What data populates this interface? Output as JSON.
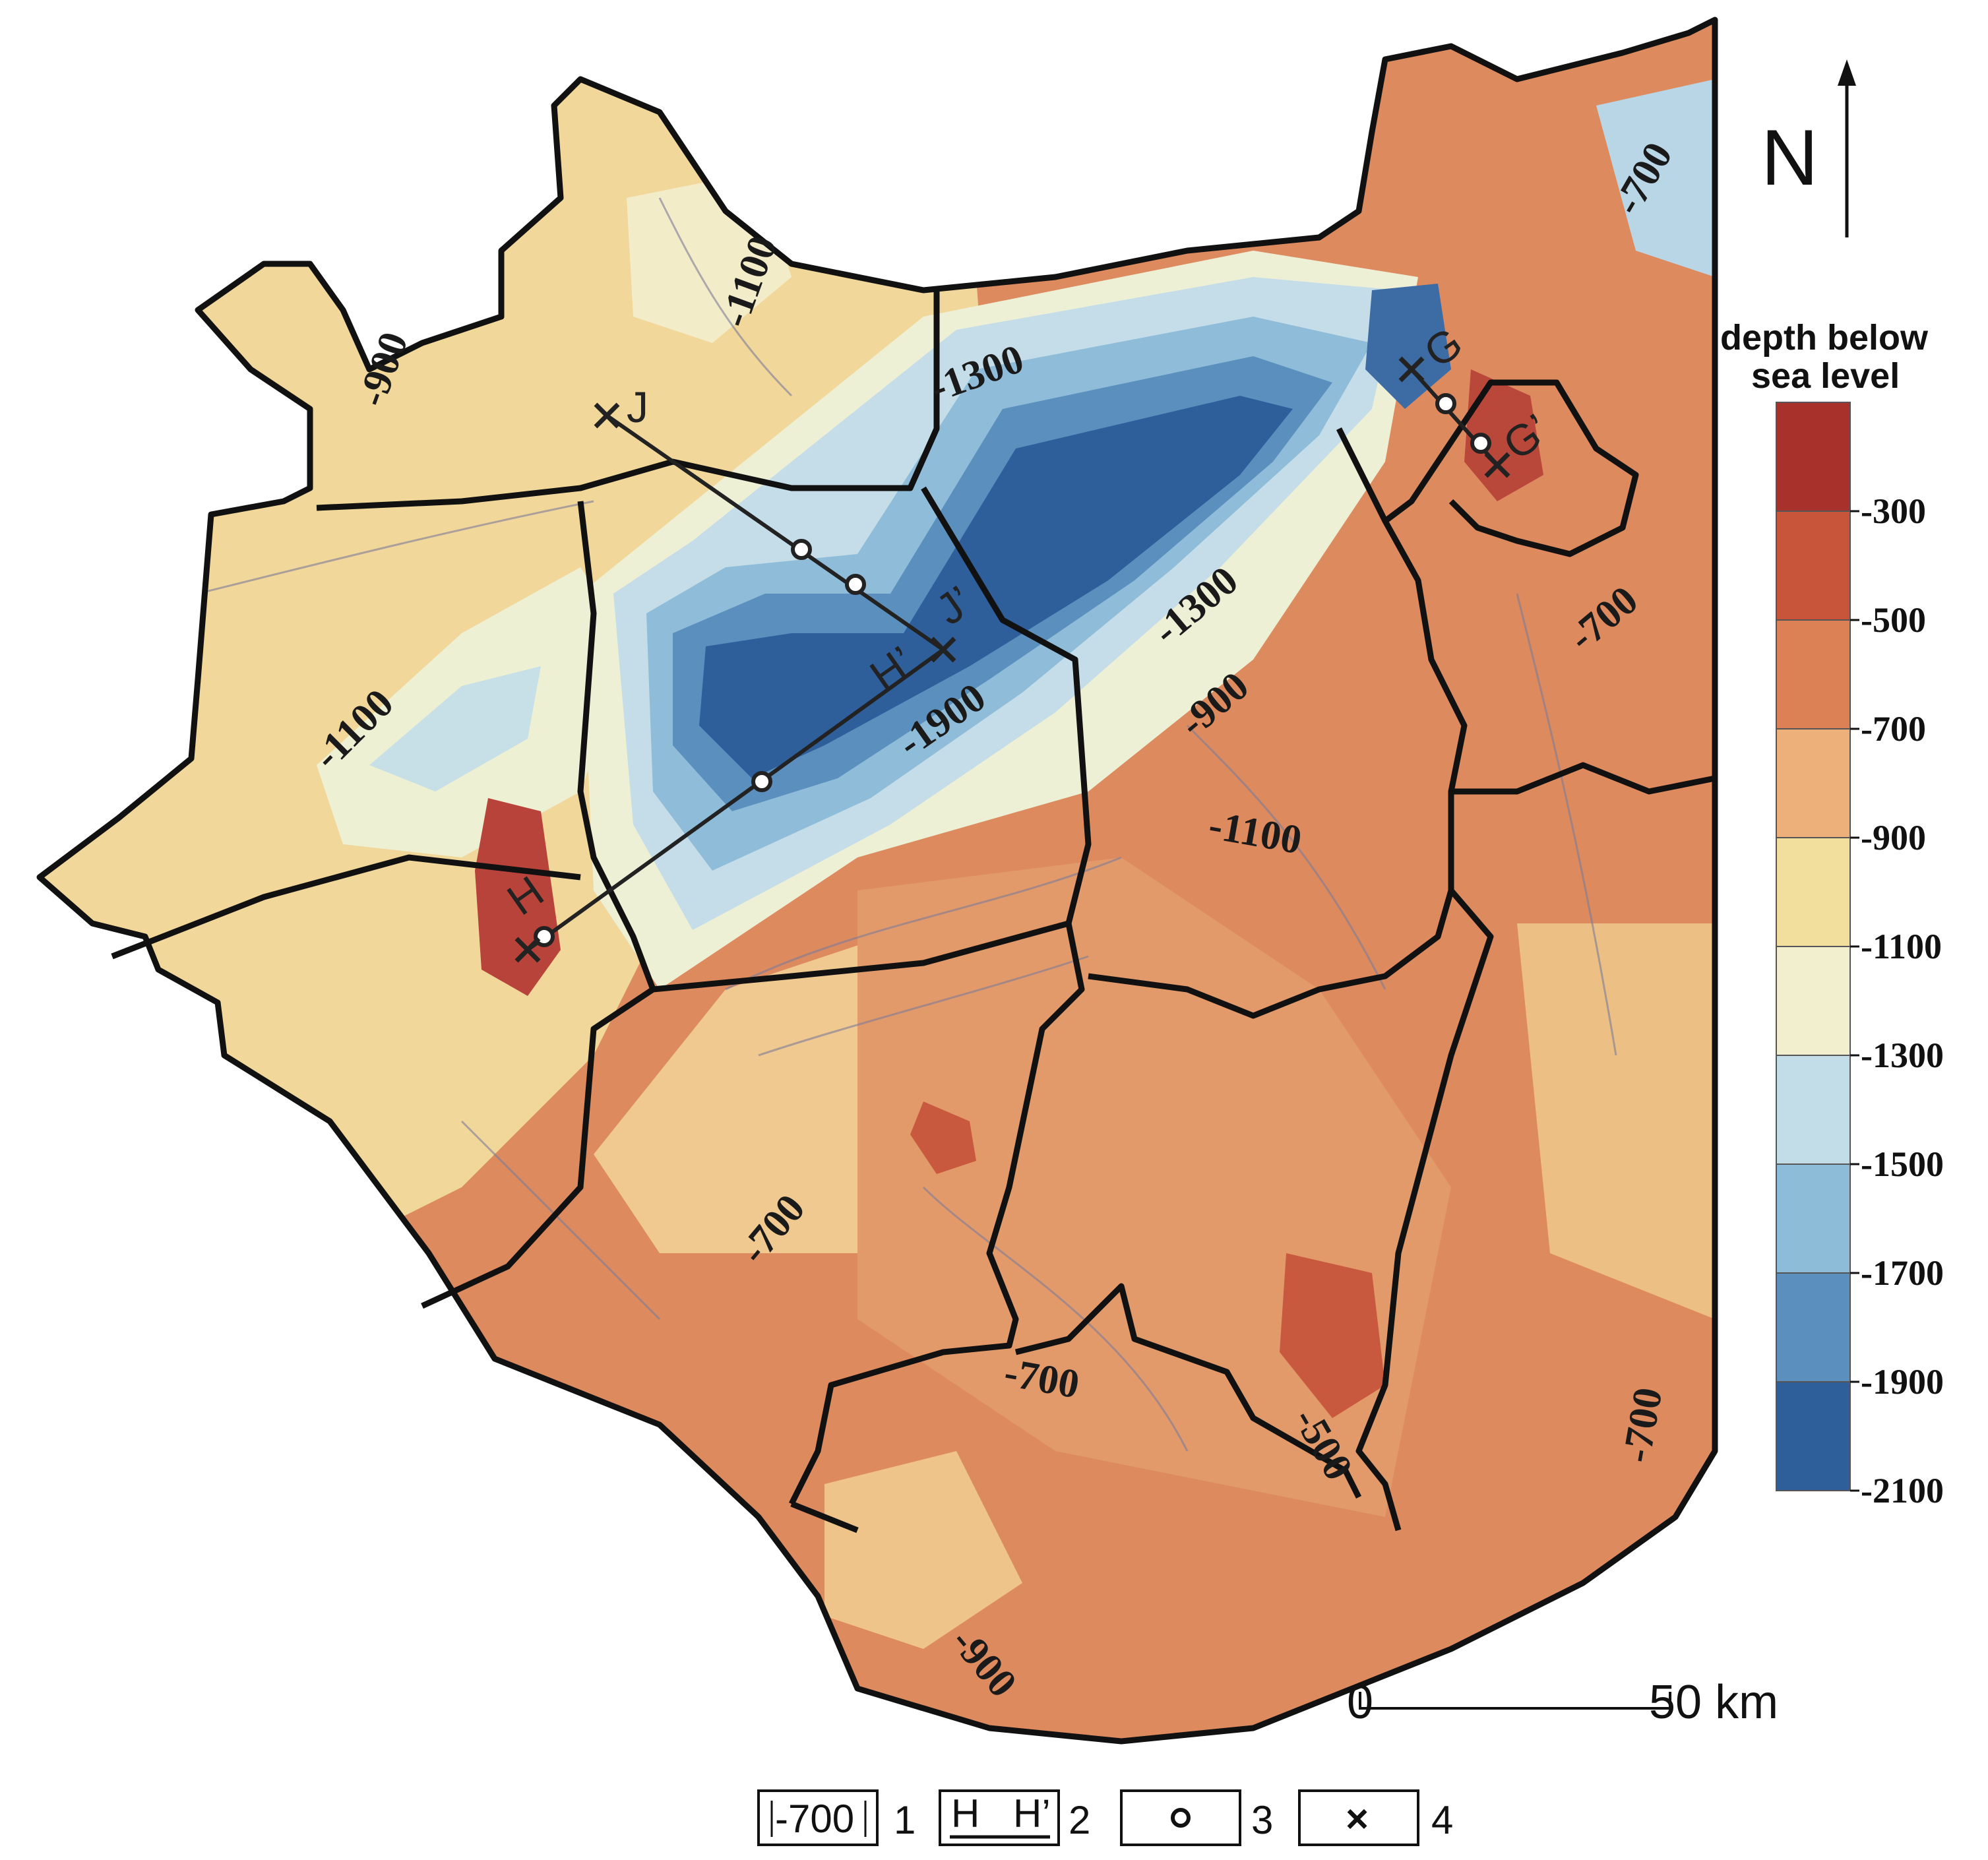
{
  "legend": {
    "title_line1": "depth below",
    "title_line2": "sea level",
    "colors": [
      "#a8322b",
      "#c8543a",
      "#dc8056",
      "#edb07a",
      "#f3df9d",
      "#f2efcf",
      "#c2dde7",
      "#8dbcd8",
      "#5b90be",
      "#2e5f9a"
    ],
    "ticks": [
      "-300",
      "-500",
      "-700",
      "-900",
      "-1100",
      "-1300",
      "-1500",
      "-1700",
      "-1900",
      "-2100"
    ]
  },
  "north": {
    "label": "N"
  },
  "scale_bar": {
    "start": "0",
    "end": "50 km"
  },
  "contour_labels": [
    "-1100",
    "-900",
    "-1300",
    "-1100",
    "-1900",
    "-1300",
    "-900",
    "-700",
    "-700",
    "-1100",
    "-700",
    "-700",
    "-500",
    "-700",
    "-900"
  ],
  "profile_points": {
    "J": "J",
    "J_prime": "J’",
    "H": "H",
    "H_prime": "H’",
    "G": "G",
    "G_prime": "G’"
  },
  "key": {
    "item1_box": "-700",
    "item1_num": "1",
    "item2_left": "H",
    "item2_right": "H’",
    "item2_num": "2",
    "item3_num": "3",
    "item4_symbol": "×",
    "item4_num": "4"
  }
}
